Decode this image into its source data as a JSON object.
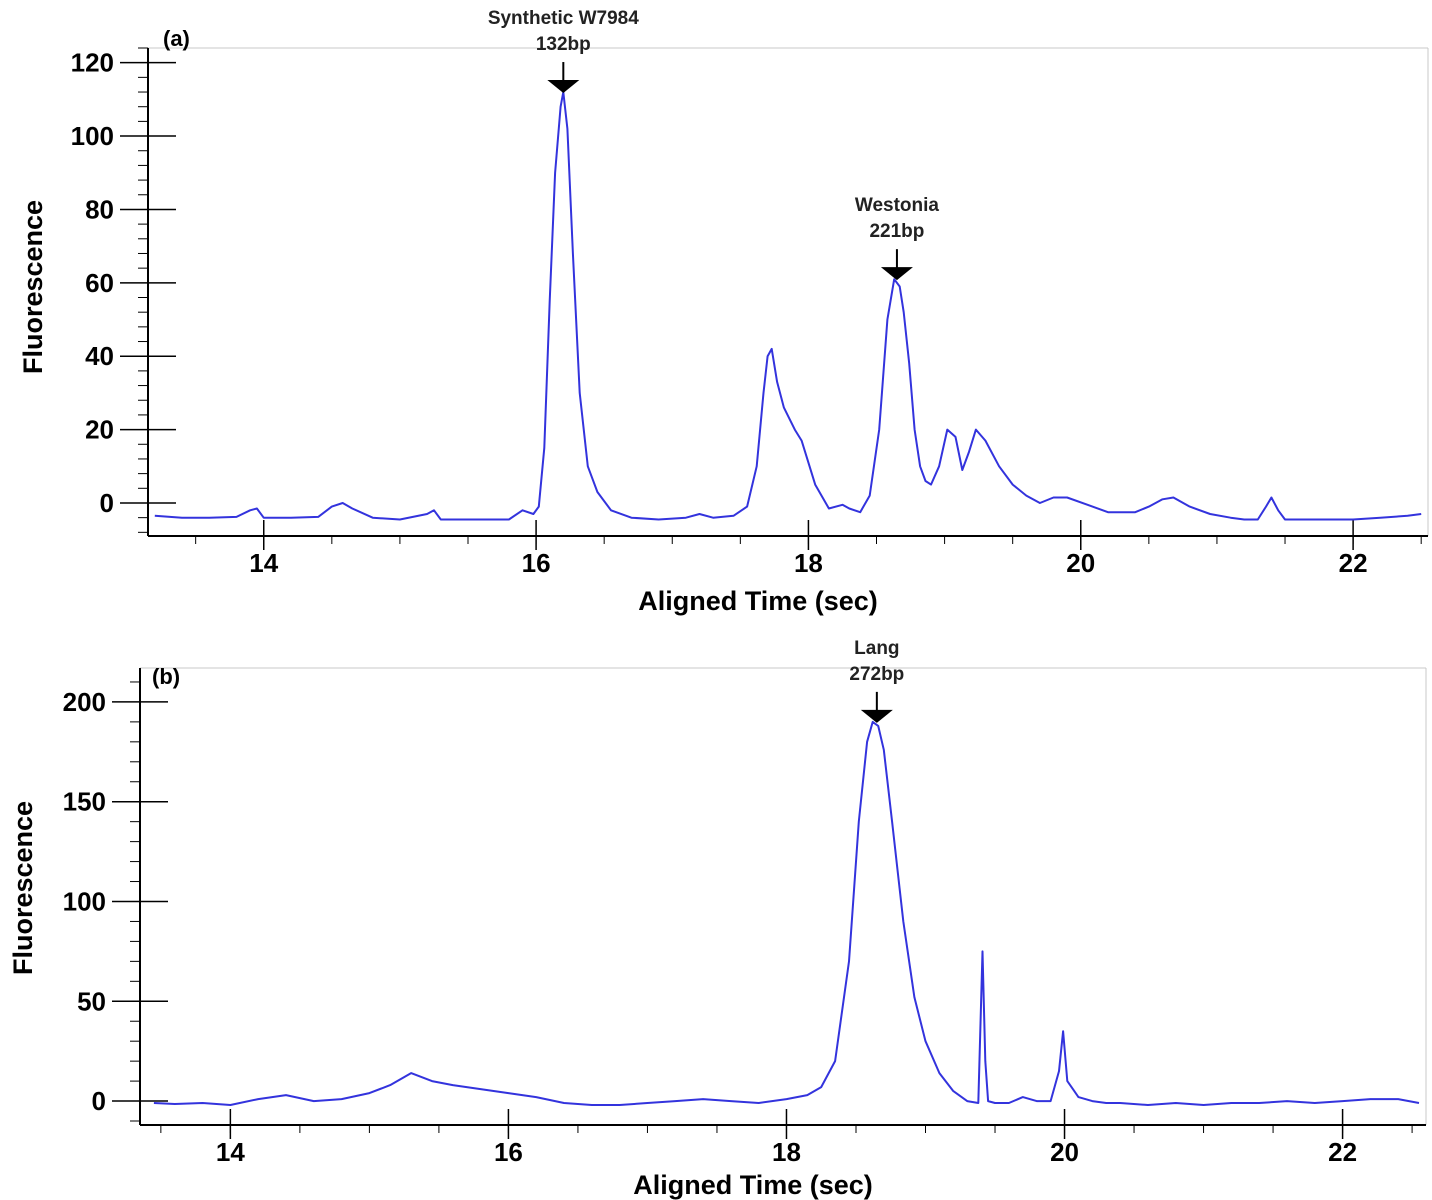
{
  "chart_data": [
    {
      "type": "line",
      "panel_label": "(a)",
      "xlabel": "Aligned Time (sec)",
      "ylabel": "Fluorescence",
      "xlim": [
        13.15,
        22.55
      ],
      "ylim": [
        -9,
        124
      ],
      "xticks": [
        14,
        16,
        18,
        20,
        22
      ],
      "yticks": [
        0,
        20,
        40,
        60,
        80,
        100,
        120
      ],
      "grid": false,
      "color": "#3333dd",
      "annotations": [
        {
          "lines": [
            "Synthetic W7984",
            "132bp"
          ],
          "x": 16.2,
          "y": 112
        },
        {
          "lines": [
            "Westonia",
            "221bp"
          ],
          "x": 18.65,
          "y": 61
        }
      ],
      "series": [
        {
          "x": [
            13.2,
            13.4,
            13.6,
            13.8,
            13.9,
            13.95,
            14.0,
            14.2,
            14.4,
            14.5,
            14.58,
            14.65,
            14.8,
            15.0,
            15.2,
            15.25,
            15.3,
            15.5,
            15.8,
            15.9,
            15.98,
            16.02,
            16.06,
            16.1,
            16.14,
            16.18,
            16.2,
            16.23,
            16.27,
            16.32,
            16.38,
            16.45,
            16.55,
            16.7,
            16.9,
            17.1,
            17.2,
            17.3,
            17.45,
            17.55,
            17.62,
            17.67,
            17.7,
            17.73,
            17.77,
            17.82,
            17.9,
            17.95,
            18.05,
            18.15,
            18.25,
            18.3,
            18.38,
            18.45,
            18.52,
            18.58,
            18.63,
            18.67,
            18.7,
            18.74,
            18.78,
            18.82,
            18.86,
            18.9,
            18.96,
            19.02,
            19.08,
            19.13,
            19.18,
            19.23,
            19.3,
            19.4,
            19.5,
            19.6,
            19.7,
            19.8,
            19.9,
            20.05,
            20.2,
            20.4,
            20.5,
            20.6,
            20.68,
            20.8,
            20.95,
            21.1,
            21.2,
            21.3,
            21.36,
            21.4,
            21.45,
            21.5,
            21.6,
            21.8,
            22.0,
            22.2,
            22.4,
            22.5
          ],
          "y": [
            -3.5,
            -4,
            -4,
            -3.8,
            -2,
            -1.5,
            -4,
            -4,
            -3.8,
            -1,
            0,
            -1.5,
            -4,
            -4.5,
            -3,
            -2,
            -4.5,
            -4.5,
            -4.5,
            -2,
            -3,
            -1,
            15,
            55,
            90,
            108,
            112,
            102,
            68,
            30,
            10,
            3,
            -2,
            -4,
            -4.5,
            -4,
            -3,
            -4,
            -3.5,
            -1,
            10,
            30,
            40,
            42,
            33,
            26,
            20,
            17,
            5,
            -1.5,
            -0.5,
            -1.5,
            -2.5,
            2,
            20,
            50,
            61,
            59,
            52,
            38,
            20,
            10,
            6,
            5,
            10,
            20,
            18,
            9,
            14,
            20,
            17,
            10,
            5,
            2,
            0,
            1.5,
            1.5,
            -0.5,
            -2.5,
            -2.5,
            -1,
            1,
            1.5,
            -1,
            -3,
            -4,
            -4.5,
            -4.5,
            -1,
            1.5,
            -2,
            -4.5,
            -4.5,
            -4.5,
            -4.5,
            -4,
            -3.5,
            -3
          ]
        }
      ]
    },
    {
      "type": "line",
      "panel_label": "(b)",
      "xlabel": "Aligned Time (sec)",
      "ylabel": "Fluorescence",
      "xlim": [
        13.35,
        22.6
      ],
      "ylim": [
        -12,
        217
      ],
      "xticks": [
        14,
        16,
        18,
        20,
        22
      ],
      "yticks": [
        0,
        50,
        100,
        150,
        200
      ],
      "grid": false,
      "color": "#3333dd",
      "annotations": [
        {
          "lines": [
            "Lang",
            "272bp"
          ],
          "x": 18.65,
          "y": 190
        }
      ],
      "series": [
        {
          "x": [
            13.45,
            13.6,
            13.8,
            14.0,
            14.2,
            14.4,
            14.6,
            14.8,
            15.0,
            15.15,
            15.3,
            15.45,
            15.6,
            15.8,
            16.0,
            16.2,
            16.4,
            16.6,
            16.8,
            17.0,
            17.2,
            17.4,
            17.6,
            17.8,
            18.0,
            18.15,
            18.25,
            18.35,
            18.45,
            18.52,
            18.58,
            18.62,
            18.66,
            18.7,
            18.76,
            18.84,
            18.92,
            19.0,
            19.1,
            19.2,
            19.3,
            19.38,
            19.41,
            19.43,
            19.45,
            19.5,
            19.6,
            19.7,
            19.8,
            19.9,
            19.96,
            19.99,
            20.02,
            20.06,
            20.1,
            20.2,
            20.3,
            20.4,
            20.6,
            20.8,
            21.0,
            21.2,
            21.4,
            21.6,
            21.8,
            22.0,
            22.2,
            22.4,
            22.55
          ],
          "y": [
            -1,
            -1.5,
            -1,
            -2,
            1,
            3,
            0,
            1,
            4,
            8,
            14,
            10,
            8,
            6,
            4,
            2,
            -1,
            -2,
            -2,
            -1,
            0,
            1,
            0,
            -1,
            1,
            3,
            7,
            20,
            70,
            140,
            180,
            190,
            188,
            176,
            140,
            90,
            52,
            30,
            14,
            5,
            0,
            -1,
            75,
            20,
            0,
            -1,
            -1,
            2,
            0,
            0,
            15,
            35,
            10,
            6,
            2,
            0,
            -1,
            -1,
            -2,
            -1,
            -2,
            -1,
            -1,
            0,
            -1,
            0,
            1,
            1,
            -1
          ]
        }
      ]
    }
  ]
}
